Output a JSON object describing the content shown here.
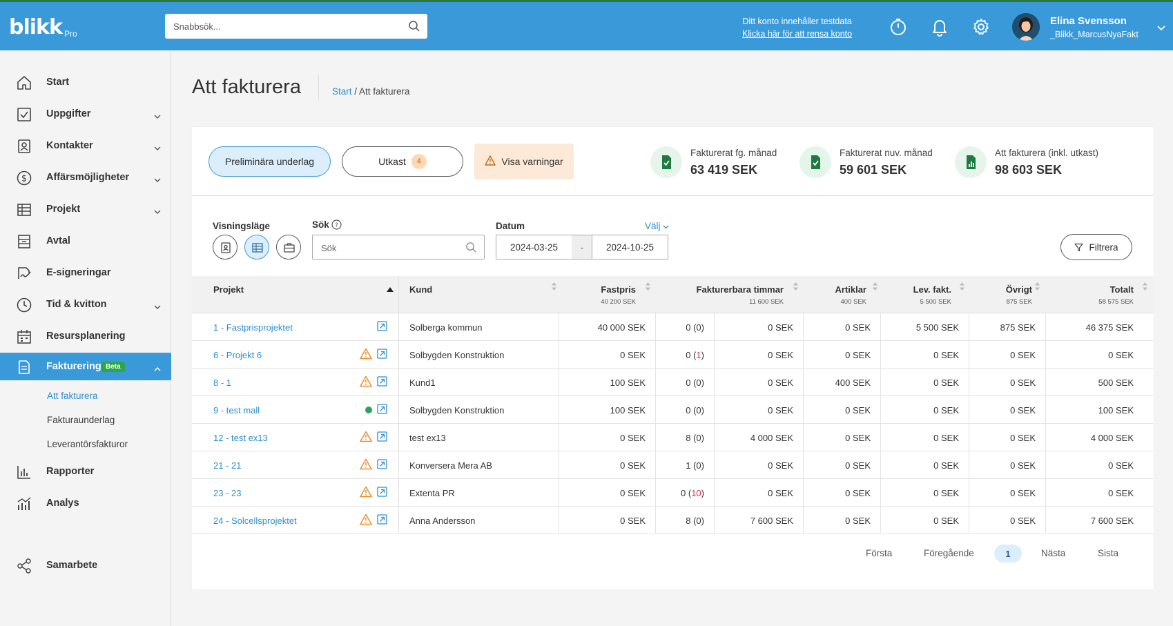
{
  "topbar": {
    "logo": "blikk",
    "logo_sub": "Pro",
    "search_placeholder": "Snabbsök...",
    "testdata_line1": "Ditt konto innehåller testdata",
    "testdata_line2": "Klicka här för att rensa konto",
    "user_name": "Elina Svensson",
    "user_sub": "_Blikk_MarcusNyaFakt"
  },
  "sidebar": {
    "items": [
      {
        "label": "Start"
      },
      {
        "label": "Uppgifter"
      },
      {
        "label": "Kontakter"
      },
      {
        "label": "Affärsmöjligheter"
      },
      {
        "label": "Projekt"
      },
      {
        "label": "Avtal"
      },
      {
        "label": "E-signeringar"
      },
      {
        "label": "Tid & kvitton"
      },
      {
        "label": "Resursplanering"
      },
      {
        "label": "Fakturering",
        "badge": "Beta"
      },
      {
        "label": "Rapporter"
      },
      {
        "label": "Analys"
      },
      {
        "label": "Samarbete"
      }
    ],
    "sub_items": [
      {
        "label": "Att fakturera"
      },
      {
        "label": "Fakturaunderlag"
      },
      {
        "label": "Leverantörsfakturor"
      }
    ]
  },
  "page": {
    "title": "Att fakturera",
    "breadcrumb_link": "Start",
    "breadcrumb_sep": " / ",
    "breadcrumb_current": "Att fakturera"
  },
  "tabs": {
    "preliminary": "Preliminära underlag",
    "drafts": "Utkast",
    "drafts_count": "4",
    "warnings": "Visa varningar"
  },
  "stats": [
    {
      "label": "Fakturerat fg. månad",
      "value": "63 419 SEK"
    },
    {
      "label": "Fakturerat nuv. månad",
      "value": "59 601 SEK"
    },
    {
      "label": "Att fakturera (inkl. utkast)",
      "value": "98 603 SEK"
    }
  ],
  "filters": {
    "view_label": "Visningsläge",
    "search_label": "Sök",
    "search_placeholder": "Sök",
    "date_label": "Datum",
    "choose": "Välj",
    "date_from": "2024-03-25",
    "date_sep": "-",
    "date_to": "2024-10-25",
    "filter_button": "Filtrera"
  },
  "table": {
    "headers": {
      "projekt": "Projekt",
      "kund": "Kund",
      "fastpris": "Fastpris",
      "fastpris_sum": "40 200 SEK",
      "timmar": "Fakturerbara timmar",
      "timmar_sum": "11 600 SEK",
      "artiklar": "Artiklar",
      "artiklar_sum": "400 SEK",
      "lev": "Lev. fakt.",
      "lev_sum": "5 500 SEK",
      "ovrigt": "Övrigt",
      "ovrigt_sum": "875 SEK",
      "totalt": "Totalt",
      "totalt_sum": "58 575 SEK"
    },
    "rows": [
      {
        "projekt": "1 - Fastprisprojektet",
        "kund": "Solberga kommun",
        "fastpris": "40 000 SEK",
        "h1": "0",
        "h2": "0",
        "tim": "0 SEK",
        "art": "0 SEK",
        "lev": "5 500 SEK",
        "ovr": "875 SEK",
        "tot": "46 375 SEK"
      },
      {
        "projekt": "6 - Projekt 6",
        "kund": "Solbygden Konstruktion",
        "fastpris": "0 SEK",
        "h1": "0",
        "h2": "1",
        "tim": "0 SEK",
        "art": "0 SEK",
        "lev": "0 SEK",
        "ovr": "0 SEK",
        "tot": "0 SEK"
      },
      {
        "projekt": "8 - 1",
        "kund": "Kund1",
        "fastpris": "100 SEK",
        "h1": "0",
        "h2": "0",
        "tim": "0 SEK",
        "art": "400 SEK",
        "lev": "0 SEK",
        "ovr": "0 SEK",
        "tot": "500 SEK"
      },
      {
        "projekt": "9 - test mall",
        "kund": "Solbygden Konstruktion",
        "fastpris": "100 SEK",
        "h1": "0",
        "h2": "0",
        "tim": "0 SEK",
        "art": "0 SEK",
        "lev": "0 SEK",
        "ovr": "0 SEK",
        "tot": "100 SEK"
      },
      {
        "projekt": "12 - test ex13",
        "kund": "test ex13",
        "fastpris": "0 SEK",
        "h1": "8",
        "h2": "0",
        "tim": "4 000 SEK",
        "art": "0 SEK",
        "lev": "0 SEK",
        "ovr": "0 SEK",
        "tot": "4 000 SEK"
      },
      {
        "projekt": "21 - 21",
        "kund": "Konversera Mera AB",
        "fastpris": "0 SEK",
        "h1": "1",
        "h2": "0",
        "tim": "0 SEK",
        "art": "0 SEK",
        "lev": "0 SEK",
        "ovr": "0 SEK",
        "tot": "0 SEK"
      },
      {
        "projekt": "23 - 23",
        "kund": "Extenta PR",
        "fastpris": "0 SEK",
        "h1": "0",
        "h2": "10",
        "tim": "0 SEK",
        "art": "0 SEK",
        "lev": "0 SEK",
        "ovr": "0 SEK",
        "tot": "0 SEK"
      },
      {
        "projekt": "24 - Solcellsprojektet",
        "kund": "Anna Andersson",
        "fastpris": "0 SEK",
        "h1": "8",
        "h2": "0",
        "tim": "7 600 SEK",
        "art": "0 SEK",
        "lev": "0 SEK",
        "ovr": "0 SEK",
        "tot": "7 600 SEK"
      }
    ]
  },
  "pagination": {
    "first": "Första",
    "prev": "Föregående",
    "current": "1",
    "next": "Nästa",
    "last": "Sista"
  },
  "colors": {
    "primary": "#3a9ad9",
    "link": "#2f8ed0",
    "warning": "#f08c2a",
    "success": "#2aa35d",
    "negative": "#d0324a"
  }
}
